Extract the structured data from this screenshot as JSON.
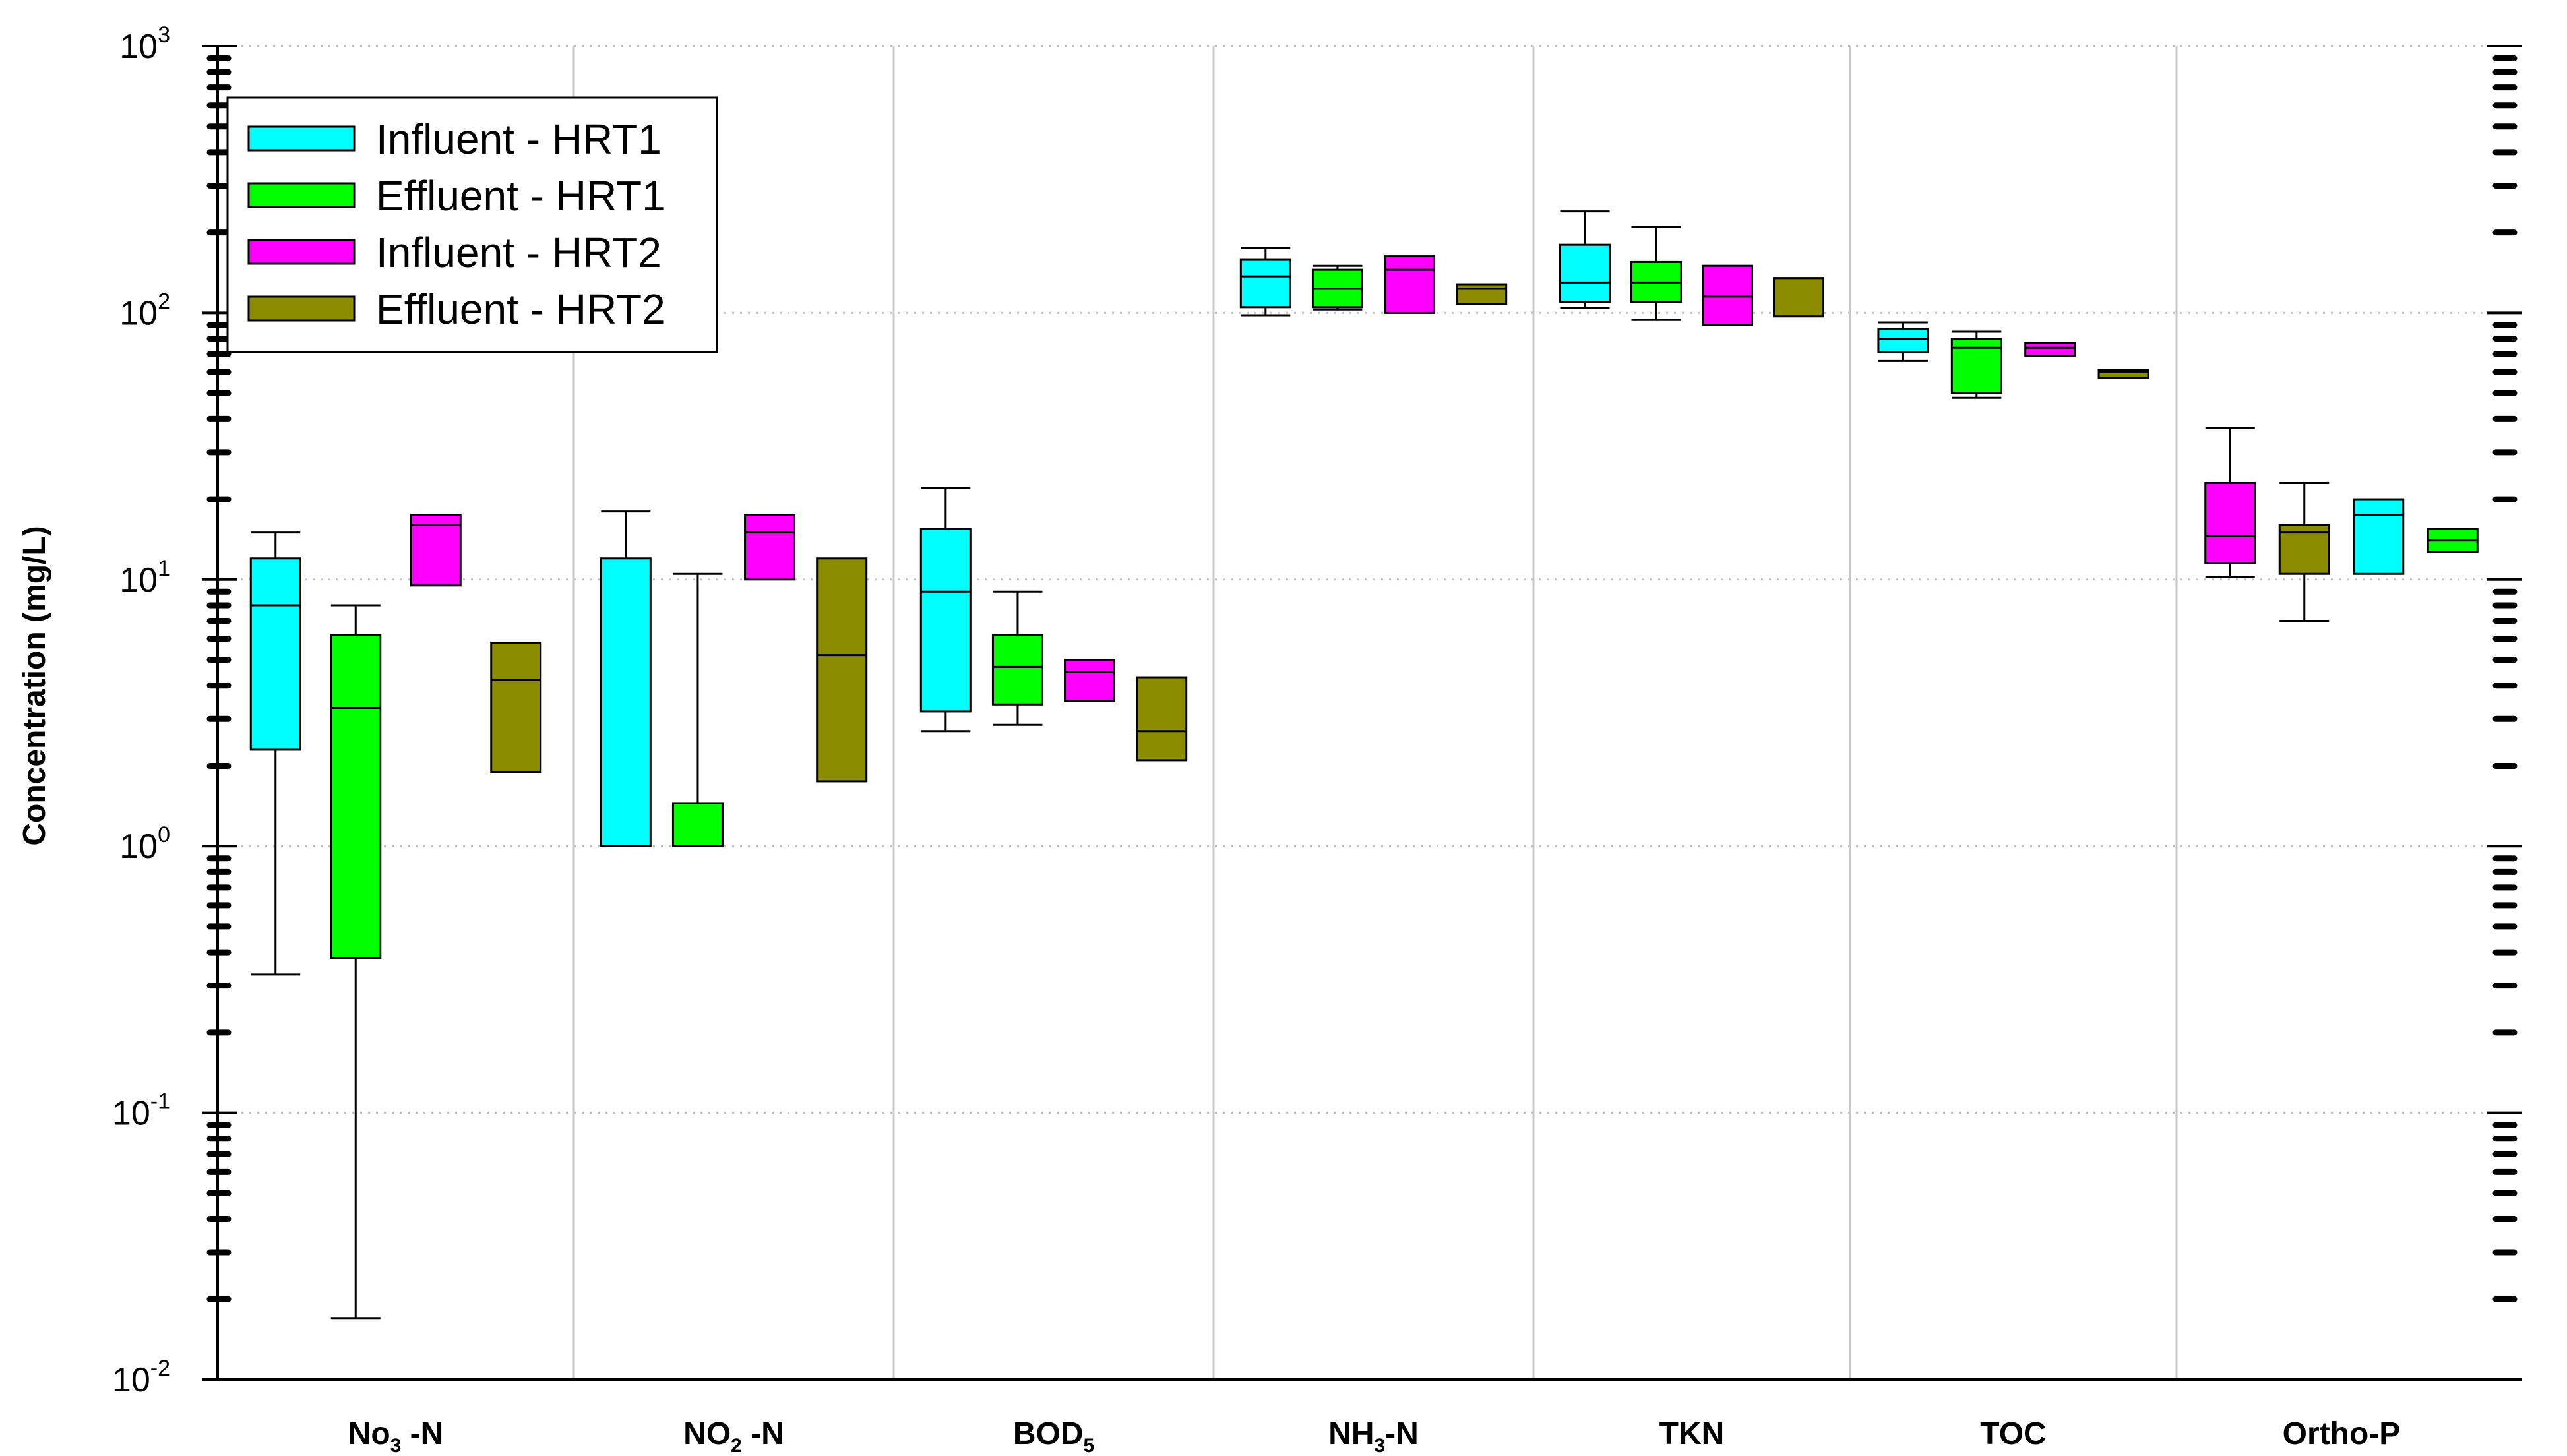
{
  "chart_data": {
    "type": "box",
    "title": "",
    "xlabel": "",
    "ylabel": "Concentration (mg/L)",
    "yscale": "log",
    "ylim": [
      0.01,
      1000
    ],
    "y_ticks": [
      {
        "value": 0.01,
        "base": "10",
        "exp": "-2"
      },
      {
        "value": 0.1,
        "base": "10",
        "exp": "-1"
      },
      {
        "value": 1,
        "base": "10",
        "exp": "0"
      },
      {
        "value": 10,
        "base": "10",
        "exp": "1"
      },
      {
        "value": 100,
        "base": "10",
        "exp": "2"
      },
      {
        "value": 1000,
        "base": "10",
        "exp": "3"
      }
    ],
    "grid": {
      "horizontal": "dotted",
      "vertical": "solid-light"
    },
    "legend": {
      "position": "top-left"
    },
    "categories": [
      {
        "main": "No",
        "sub": "3",
        "tail": " -N"
      },
      {
        "main": "NO",
        "sub": "2",
        "tail": " -N"
      },
      {
        "main": "BOD",
        "sub": "5",
        "tail": ""
      },
      {
        "main": "NH",
        "sub": "3",
        "tail": "-N"
      },
      {
        "main": "TKN",
        "sub": "",
        "tail": ""
      },
      {
        "main": "TOC",
        "sub": "",
        "tail": ""
      },
      {
        "main": "Ortho-P",
        "sub": "",
        "tail": ""
      }
    ],
    "series": [
      {
        "name": "Influent - HRT1",
        "color": "#00ffff"
      },
      {
        "name": "Effluent - HRT1",
        "color": "#00ff00"
      },
      {
        "name": "Influent - HRT2",
        "color": "#ff00ff"
      },
      {
        "name": "Effluent - HRT2",
        "color": "#8c8c00"
      }
    ],
    "boxes": [
      {
        "category": 0,
        "color": "#00ffff",
        "whisker_low": 0.33,
        "q1": 2.3,
        "median": 8.0,
        "q3": 12.0,
        "whisker_high": 15.0
      },
      {
        "category": 0,
        "color": "#00ff00",
        "whisker_low": 0.017,
        "q1": 0.38,
        "median": 3.3,
        "q3": 6.2,
        "whisker_high": 8.0
      },
      {
        "category": 0,
        "color": "#ff00ff",
        "whisker_low": null,
        "q1": 9.5,
        "median": 16.0,
        "q3": 17.5,
        "whisker_high": null
      },
      {
        "category": 0,
        "color": "#8c8c00",
        "whisker_low": null,
        "q1": 1.9,
        "median": 4.2,
        "q3": 5.8,
        "whisker_high": null
      },
      {
        "category": 1,
        "color": "#00ffff",
        "whisker_low": null,
        "q1": 1.0,
        "median": 1.0,
        "q3": 12.0,
        "whisker_high": 18.0
      },
      {
        "category": 1,
        "color": "#00ff00",
        "whisker_low": null,
        "q1": 1.0,
        "median": 1.0,
        "q3": 1.45,
        "whisker_high": 10.5
      },
      {
        "category": 1,
        "color": "#ff00ff",
        "whisker_low": null,
        "q1": 10.0,
        "median": 15.0,
        "q3": 17.5,
        "whisker_high": null
      },
      {
        "category": 1,
        "color": "#8c8c00",
        "whisker_low": null,
        "q1": 1.75,
        "median": 5.2,
        "q3": 12.0,
        "whisker_high": null
      },
      {
        "category": 2,
        "color": "#00ffff",
        "whisker_low": 2.7,
        "q1": 3.2,
        "median": 9.0,
        "q3": 15.5,
        "whisker_high": 22.0
      },
      {
        "category": 2,
        "color": "#00ff00",
        "whisker_low": 2.85,
        "q1": 3.4,
        "median": 4.7,
        "q3": 6.2,
        "whisker_high": 9.0
      },
      {
        "category": 2,
        "color": "#ff00ff",
        "whisker_low": null,
        "q1": 3.5,
        "median": 4.5,
        "q3": 5.0,
        "whisker_high": null
      },
      {
        "category": 2,
        "color": "#8c8c00",
        "whisker_low": null,
        "q1": 2.1,
        "median": 2.7,
        "q3": 4.3,
        "whisker_high": null
      },
      {
        "category": 3,
        "color": "#00ffff",
        "whisker_low": 98,
        "q1": 105,
        "median": 137,
        "q3": 158,
        "whisker_high": 175
      },
      {
        "category": 3,
        "color": "#00ff00",
        "whisker_low": 103,
        "q1": 105,
        "median": 123,
        "q3": 145,
        "whisker_high": 150
      },
      {
        "category": 3,
        "color": "#ff00ff",
        "whisker_low": null,
        "q1": 100,
        "median": 145,
        "q3": 163,
        "whisker_high": null
      },
      {
        "category": 3,
        "color": "#8c8c00",
        "whisker_low": null,
        "q1": 108,
        "median": 123,
        "q3": 128,
        "whisker_high": null
      },
      {
        "category": 4,
        "color": "#00ffff",
        "whisker_low": 104,
        "q1": 110,
        "median": 130,
        "q3": 180,
        "whisker_high": 240
      },
      {
        "category": 4,
        "color": "#00ff00",
        "whisker_low": 94,
        "q1": 110,
        "median": 130,
        "q3": 155,
        "whisker_high": 210
      },
      {
        "category": 4,
        "color": "#ff00ff",
        "whisker_low": null,
        "q1": 90,
        "median": 115,
        "q3": 150,
        "whisker_high": null
      },
      {
        "category": 4,
        "color": "#8c8c00",
        "whisker_low": null,
        "q1": 97,
        "median": 135,
        "q3": 135,
        "whisker_high": null
      },
      {
        "category": 5,
        "color": "#00ffff",
        "whisker_low": 66,
        "q1": 71,
        "median": 80,
        "q3": 87,
        "whisker_high": 92
      },
      {
        "category": 5,
        "color": "#00ff00",
        "whisker_low": 48,
        "q1": 50,
        "median": 74,
        "q3": 80,
        "whisker_high": 85
      },
      {
        "category": 5,
        "color": "#ff00ff",
        "whisker_low": null,
        "q1": 69,
        "median": 74,
        "q3": 77,
        "whisker_high": null
      },
      {
        "category": 5,
        "color": "#8c8c00",
        "whisker_low": null,
        "q1": 57,
        "median": 60,
        "q3": 61,
        "whisker_high": null
      },
      {
        "category": 6,
        "color": "#ff00ff",
        "whisker_low": 10.2,
        "q1": 11.5,
        "median": 14.5,
        "q3": 23.0,
        "whisker_high": 37.0
      },
      {
        "category": 6,
        "color": "#8c8c00",
        "whisker_low": 7.0,
        "q1": 10.5,
        "median": 15.0,
        "q3": 16.0,
        "whisker_high": 23.0
      },
      {
        "category": 6,
        "color": "#00ffff",
        "whisker_low": null,
        "q1": 10.5,
        "median": 17.5,
        "q3": 20.0,
        "whisker_high": null
      },
      {
        "category": 6,
        "color": "#00ff00",
        "whisker_low": null,
        "q1": 12.7,
        "median": 14.0,
        "q3": 15.5,
        "whisker_high": null
      }
    ]
  }
}
